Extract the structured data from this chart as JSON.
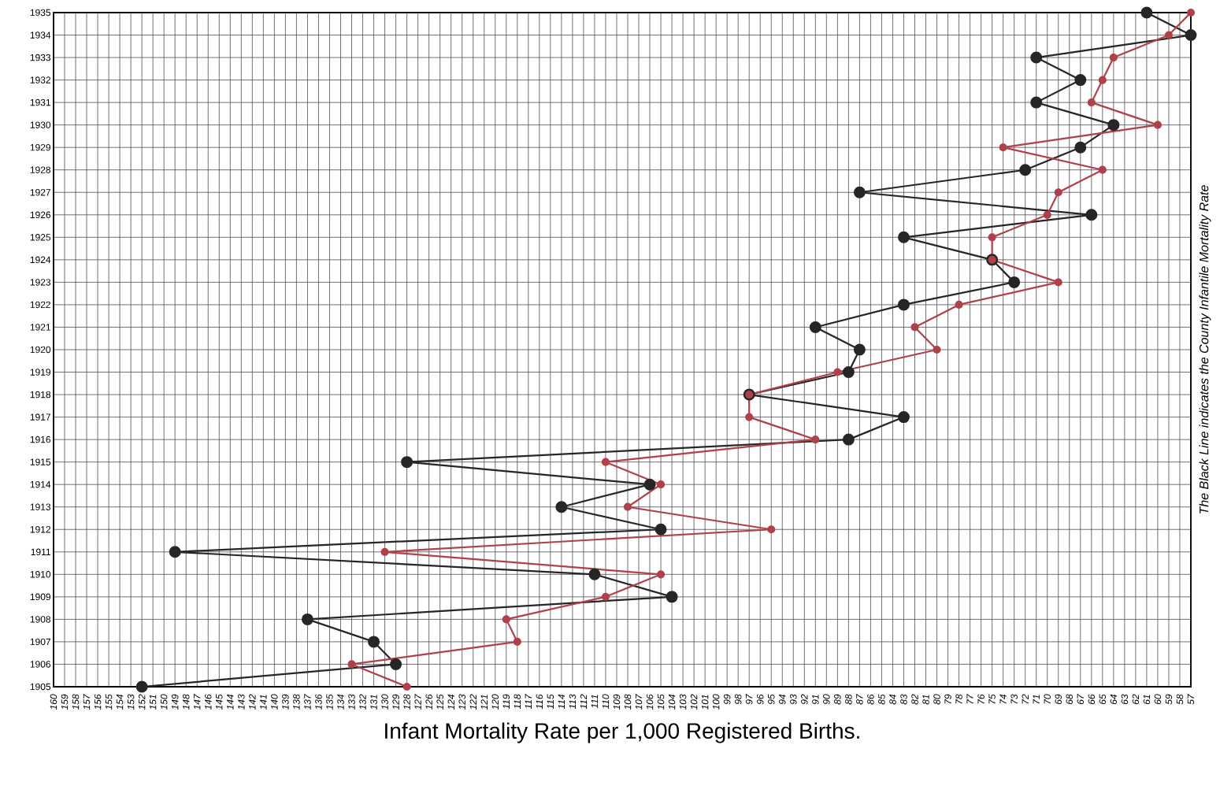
{
  "chart_data": {
    "type": "line",
    "xlabel": "Infant Mortality Rate per 1,000 Registered Births.",
    "annotations": [
      "The Black Line indicates the County Infantile Mortality Rate"
    ],
    "xlim": [
      160,
      57
    ],
    "xticks": [
      160,
      159,
      158,
      157,
      156,
      155,
      154,
      153,
      152,
      151,
      150,
      149,
      148,
      147,
      146,
      145,
      144,
      143,
      142,
      141,
      140,
      139,
      138,
      137,
      136,
      135,
      134,
      133,
      132,
      131,
      130,
      129,
      128,
      127,
      126,
      125,
      124,
      123,
      122,
      121,
      120,
      119,
      118,
      117,
      116,
      115,
      114,
      113,
      112,
      111,
      110,
      109,
      108,
      107,
      106,
      105,
      104,
      103,
      102,
      101,
      100,
      99,
      98,
      97,
      96,
      95,
      94,
      93,
      92,
      91,
      90,
      89,
      88,
      87,
      86,
      85,
      84,
      83,
      82,
      81,
      80,
      79,
      78,
      77,
      76,
      75,
      74,
      73,
      72,
      71,
      70,
      69,
      68,
      67,
      66,
      65,
      64,
      63,
      62,
      61,
      60,
      59,
      58,
      57
    ],
    "ylim": [
      1905,
      1935
    ],
    "yticks": [
      1905,
      1906,
      1907,
      1908,
      1909,
      1910,
      1911,
      1912,
      1913,
      1914,
      1915,
      1916,
      1917,
      1918,
      1919,
      1920,
      1921,
      1922,
      1923,
      1924,
      1925,
      1926,
      1927,
      1928,
      1929,
      1930,
      1931,
      1932,
      1933,
      1934,
      1935
    ],
    "grid": true,
    "marker": "circle",
    "line_style": "solid",
    "series": [
      {
        "color": "#262626",
        "x": [
          152,
          129,
          131,
          137,
          104,
          111,
          149,
          105,
          114,
          106,
          128,
          88,
          83,
          97,
          88,
          87,
          91,
          83,
          73,
          75,
          83,
          66,
          87,
          72,
          67,
          64,
          71,
          67,
          71,
          57,
          61
        ],
        "values": [
          1905,
          1906,
          1907,
          1908,
          1909,
          1910,
          1911,
          1912,
          1913,
          1914,
          1915,
          1916,
          1917,
          1918,
          1919,
          1920,
          1921,
          1922,
          1923,
          1924,
          1925,
          1926,
          1927,
          1928,
          1929,
          1930,
          1931,
          1932,
          1933,
          1934,
          1935
        ]
      },
      {
        "color": "#b0404a",
        "x": [
          128,
          133,
          118,
          119,
          110,
          105,
          130,
          95,
          108,
          105,
          110,
          91,
          97,
          97,
          89,
          80,
          82,
          78,
          69,
          75,
          75,
          70,
          69,
          65,
          74,
          60,
          66,
          65,
          64,
          59,
          57
        ],
        "values": [
          1905,
          1906,
          1907,
          1908,
          1909,
          1910,
          1911,
          1912,
          1913,
          1914,
          1915,
          1916,
          1917,
          1918,
          1919,
          1920,
          1921,
          1922,
          1923,
          1924,
          1925,
          1926,
          1927,
          1928,
          1929,
          1930,
          1931,
          1932,
          1933,
          1934,
          1935
        ]
      }
    ]
  }
}
